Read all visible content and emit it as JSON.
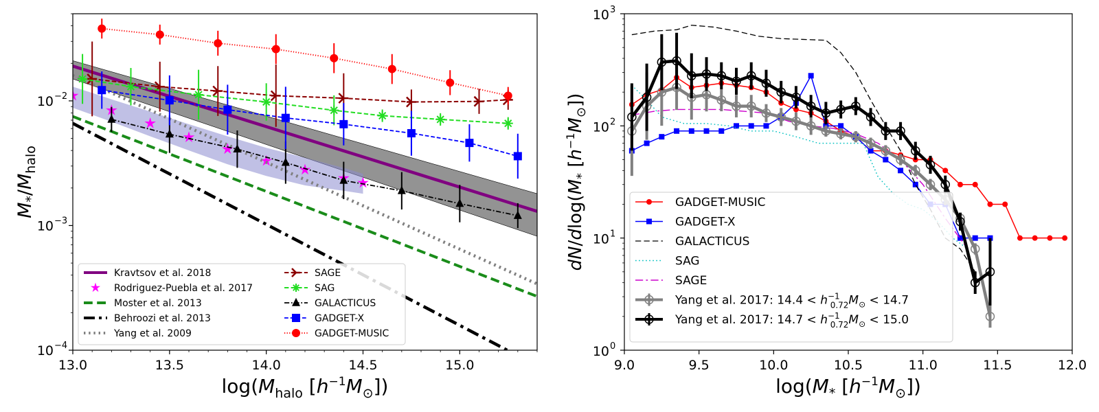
{
  "chart_data": [
    {
      "type": "line",
      "xlabel": "log(M_halo [h^-1 M_sun])",
      "ylabel": "M_*/M_halo",
      "xlim": [
        13.0,
        15.4
      ],
      "ylim": [
        0.0001,
        0.05
      ],
      "yscale": "log",
      "x_ticks": [
        13.0,
        13.5,
        14.0,
        14.5,
        15.0
      ],
      "x_tick_labels": [
        "13.0",
        "13.5",
        "14.0",
        "14.5",
        "15.0"
      ],
      "y_ticks": [
        0.0001,
        0.001,
        0.01
      ],
      "y_tick_labels": [
        "10",
        "10",
        "10"
      ],
      "y_tick_exponents": [
        "-4",
        "-3",
        "-2"
      ],
      "legend_position": "lower-left",
      "series": [
        {
          "name": "Kravtsov et al. 2018",
          "color": "#800080",
          "style": "solid",
          "x": [
            13.0,
            15.4
          ],
          "y": [
            0.019,
            0.0013
          ],
          "band_lower": [
            0.015,
            0.00082
          ],
          "band_upper": [
            0.021,
            0.0018
          ],
          "band_color": "#808080"
        },
        {
          "name": "Rodriguez-Puebla et al. 2017",
          "color": "#ff00ff",
          "marker": "star",
          "x": [
            13.0,
            13.2,
            13.4,
            13.6,
            13.8,
            14.0,
            14.2,
            14.4,
            14.5
          ],
          "y": [
            0.011,
            0.0084,
            0.0066,
            0.0051,
            0.0041,
            0.0033,
            0.0028,
            0.0024,
            0.0022
          ],
          "band_lower": [
            0.0088,
            0.0068,
            0.0052,
            0.004,
            0.0031,
            0.0025,
            0.0021,
            0.0019,
            0.0018
          ],
          "band_upper": [
            0.013,
            0.0103,
            0.0082,
            0.0065,
            0.0052,
            0.0042,
            0.0035,
            0.0029,
            0.0026
          ],
          "band_color": "#8c8cd0"
        },
        {
          "name": "Moster et al. 2013",
          "color": "#1a8c1a",
          "style": "dashed",
          "x": [
            13.0,
            15.4
          ],
          "y": [
            0.0075,
            0.00027
          ]
        },
        {
          "name": "Behroozi et al. 2013",
          "color": "#000000",
          "style": "dashdot",
          "x": [
            13.0,
            15.4
          ],
          "y": [
            0.0066,
            7.5e-05
          ]
        },
        {
          "name": "Yang et al. 2009",
          "color": "#808080",
          "style": "dotted",
          "x": [
            13.0,
            15.4
          ],
          "y": [
            0.016,
            0.00034
          ]
        },
        {
          "name": "SAGE",
          "color": "#8b0000",
          "marker": "tri_right",
          "style": "dashed",
          "x": [
            13.1,
            13.45,
            13.75,
            14.05,
            14.4,
            14.75,
            15.1,
            15.25
          ],
          "y": [
            0.015,
            0.013,
            0.012,
            0.011,
            0.0105,
            0.0098,
            0.0099,
            0.0102
          ],
          "yerr": [
            0.3,
            0.2,
            0.2,
            0.25,
            0.2,
            0.1,
            0.1,
            0.08
          ]
        },
        {
          "name": "SAG",
          "color": "#22dd22",
          "marker": "x_plus",
          "style": "dashed",
          "x": [
            13.05,
            13.3,
            13.65,
            14.0,
            14.35,
            14.6,
            14.9,
            15.25
          ],
          "y": [
            0.015,
            0.013,
            0.0112,
            0.0098,
            0.0084,
            0.0076,
            0.0071,
            0.0066
          ],
          "yerr": [
            0.2,
            0.15,
            0.2,
            0.15,
            0.12,
            0.05,
            0.05,
            0.05
          ]
        },
        {
          "name": "GALACTICUS",
          "color": "#000000",
          "marker": "triangle",
          "style": "dashdot",
          "x": [
            13.2,
            13.5,
            13.85,
            14.1,
            14.4,
            14.7,
            15.0,
            15.3
          ],
          "y": [
            0.0071,
            0.0054,
            0.0041,
            0.0032,
            0.0023,
            0.0019,
            0.0015,
            0.0012
          ],
          "yerr": [
            0.1,
            0.15,
            0.15,
            0.17,
            0.15,
            0.15,
            0.15,
            0.1
          ]
        },
        {
          "name": "GADGET-X",
          "color": "#0000ff",
          "marker": "square",
          "style": "dashed",
          "x": [
            13.15,
            13.5,
            13.8,
            14.1,
            14.4,
            14.75,
            15.05,
            15.3
          ],
          "y": [
            0.0122,
            0.0101,
            0.0085,
            0.0073,
            0.0065,
            0.0055,
            0.0046,
            0.0036
          ],
          "yerr": [
            0.15,
            0.2,
            0.2,
            0.25,
            0.17,
            0.18,
            0.15,
            0.18
          ]
        },
        {
          "name": "GADGET-MUSIC",
          "color": "#ff0000",
          "marker": "circle",
          "style": "dotted",
          "x": [
            13.15,
            13.45,
            13.75,
            14.05,
            14.35,
            14.65,
            14.95,
            15.25
          ],
          "y": [
            0.038,
            0.034,
            0.029,
            0.026,
            0.022,
            0.018,
            0.014,
            0.011
          ],
          "yerr": [
            0.08,
            0.08,
            0.1,
            0.12,
            0.12,
            0.12,
            0.1,
            0.07
          ]
        }
      ]
    },
    {
      "type": "line",
      "xlabel": "log(M_* [h^-1 M_sun])",
      "ylabel": "dN/dlog(M_* [h^-1 M_sun])",
      "xlim": [
        9.0,
        12.0
      ],
      "ylim": [
        1,
        1000
      ],
      "yscale": "log",
      "x_ticks": [
        9.0,
        9.5,
        10.0,
        10.5,
        11.0,
        11.5,
        12.0
      ],
      "x_tick_labels": [
        "9.0",
        "9.5",
        "10.0",
        "10.5",
        "11.0",
        "11.5",
        "12.0"
      ],
      "y_ticks": [
        1,
        10,
        100,
        1000
      ],
      "y_tick_labels": [
        "10",
        "10",
        "10",
        "10"
      ],
      "y_tick_exponents": [
        "0",
        "1",
        "2",
        "3"
      ],
      "legend_position": "lower-left",
      "series": [
        {
          "name": "GADGET-MUSIC",
          "color": "#ff0000",
          "marker": "circle",
          "style": "solid",
          "x": [
            9.05,
            9.15,
            9.25,
            9.35,
            9.45,
            9.55,
            9.65,
            9.75,
            9.85,
            9.95,
            10.05,
            10.15,
            10.25,
            10.35,
            10.45,
            10.55,
            10.65,
            10.75,
            10.85,
            10.95,
            11.05,
            11.15,
            11.25,
            11.35,
            11.45,
            11.55,
            11.65,
            11.75,
            11.85,
            11.95
          ],
          "y": [
            155,
            190,
            210,
            270,
            220,
            230,
            240,
            230,
            220,
            200,
            160,
            140,
            130,
            110,
            90,
            80,
            60,
            60,
            55,
            50,
            50,
            40,
            30,
            30,
            20,
            20,
            10,
            10,
            10,
            10
          ]
        },
        {
          "name": "GADGET-X",
          "color": "#0000ff",
          "marker": "square",
          "style": "solid",
          "x": [
            9.05,
            9.15,
            9.25,
            9.35,
            9.45,
            9.55,
            9.65,
            9.75,
            9.85,
            9.95,
            10.05,
            10.15,
            10.25,
            10.35,
            10.45,
            10.55,
            10.65,
            10.75,
            10.85,
            10.95,
            11.05,
            11.15,
            11.25,
            11.35,
            11.45
          ],
          "y": [
            60,
            70,
            80,
            90,
            90,
            90,
            90,
            100,
            100,
            100,
            120,
            160,
            280,
            100,
            100,
            80,
            60,
            50,
            40,
            30,
            20,
            20,
            10,
            10,
            10
          ]
        },
        {
          "name": "GALACTICUS",
          "color": "#000000",
          "style": "dashed",
          "x": [
            9.05,
            9.2,
            9.35,
            9.45,
            9.6,
            9.75,
            9.9,
            10.05,
            10.2,
            10.35,
            10.45,
            10.55,
            10.65,
            10.75,
            10.85,
            10.95,
            11.05,
            11.15,
            11.25,
            11.35
          ],
          "y": [
            650,
            700,
            720,
            790,
            760,
            700,
            630,
            600,
            590,
            580,
            450,
            300,
            170,
            100,
            60,
            30,
            18,
            10,
            8,
            5
          ]
        },
        {
          "name": "SAG",
          "color": "#00c0c0",
          "style": "dotted",
          "x": [
            9.05,
            9.15,
            9.25,
            9.4,
            9.55,
            9.7,
            9.85,
            10.0,
            10.15,
            10.3,
            10.5,
            10.6,
            10.7,
            10.8,
            10.9,
            11.0,
            11.1,
            11.2,
            11.3
          ],
          "y": [
            230,
            170,
            120,
            105,
            105,
            100,
            90,
            90,
            80,
            70,
            70,
            70,
            35,
            25,
            20,
            18,
            14,
            10,
            8
          ]
        },
        {
          "name": "SAGE",
          "color": "#cc00cc",
          "style": "dashdot",
          "x": [
            9.05,
            9.2,
            9.35,
            9.5,
            9.65,
            9.8,
            9.95,
            10.1,
            10.25,
            10.4,
            10.55,
            10.7,
            10.85,
            11.0,
            11.15,
            11.3
          ],
          "y": [
            125,
            135,
            140,
            140,
            140,
            135,
            130,
            110,
            100,
            95,
            85,
            70,
            50,
            30,
            15,
            8
          ]
        },
        {
          "name": "Yang et al. 2017: 14.4 < h_0.72^-1 M_sun < 14.7",
          "color": "#808080",
          "marker": "open_circle",
          "style": "solid",
          "x": [
            9.05,
            9.15,
            9.25,
            9.35,
            9.45,
            9.55,
            9.65,
            9.75,
            9.85,
            9.95,
            10.05,
            10.15,
            10.25,
            10.35,
            10.45,
            10.55,
            10.65,
            10.75,
            10.85,
            10.95,
            11.05,
            11.15,
            11.25,
            11.35,
            11.45
          ],
          "y": [
            90,
            150,
            200,
            220,
            180,
            190,
            170,
            150,
            150,
            130,
            120,
            110,
            100,
            90,
            85,
            80,
            70,
            60,
            50,
            40,
            30,
            22,
            15,
            8,
            2
          ],
          "yerr": [
            0.4,
            0.3,
            0.3,
            0.2,
            0.2,
            0.15,
            0.1,
            0.1,
            0.1,
            0.08,
            0.08,
            0.08,
            0.08,
            0.05,
            0.05,
            0.05,
            0.05,
            0.05,
            0.05,
            0.05,
            0.05,
            0.05,
            0.05,
            0.05,
            0.1
          ]
        },
        {
          "name": "Yang et al. 2017: 14.7 < h_0.72^-1 M_sun < 15.0",
          "color": "#000000",
          "marker": "open_circle",
          "style": "solid",
          "x": [
            9.05,
            9.15,
            9.25,
            9.35,
            9.45,
            9.55,
            9.65,
            9.75,
            9.85,
            9.95,
            10.05,
            10.15,
            10.25,
            10.35,
            10.45,
            10.55,
            10.65,
            10.75,
            10.85,
            10.95,
            11.05,
            11.15,
            11.25,
            11.35,
            11.45
          ],
          "y": [
            120,
            180,
            370,
            380,
            280,
            290,
            280,
            250,
            280,
            240,
            200,
            180,
            150,
            130,
            140,
            150,
            120,
            90,
            90,
            60,
            45,
            30,
            14,
            4,
            5
          ],
          "yerr": [
            0.3,
            0.3,
            0.25,
            0.25,
            0.2,
            0.15,
            0.12,
            0.12,
            0.12,
            0.12,
            0.1,
            0.1,
            0.1,
            0.1,
            0.08,
            0.08,
            0.08,
            0.08,
            0.08,
            0.08,
            0.08,
            0.08,
            0.08,
            0.1,
            0.3
          ]
        }
      ]
    }
  ]
}
